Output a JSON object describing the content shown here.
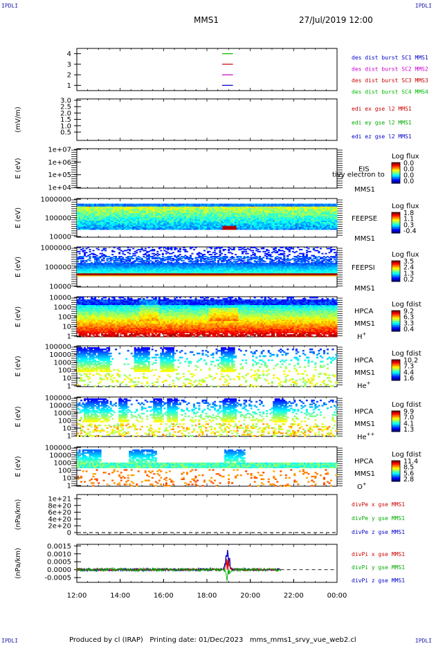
{
  "header": {
    "corner_label": "IPDLI",
    "center_title": "MMS1",
    "datetime": "27/Jul/2019 12:00"
  },
  "footer": {
    "produced_by": "Produced by cl (IRAP)",
    "printing_date": "Printing date: 01/Dec/2023",
    "file_name": "mms_mms1_srvy_vue_web2.cl"
  },
  "colors": {
    "mms1": "#0000cc",
    "mms2": "#cc00cc",
    "mms3": "#cc0000",
    "mms4": "#00bb00",
    "red_label": "#cc0000",
    "green_label": "#00aa00",
    "blue_label": "#0000cc"
  },
  "chart_data": [
    {
      "id": "des-dist-burst",
      "type": "line",
      "ylabel": "",
      "ylim": [
        0.5,
        4.5
      ],
      "yticks": [
        "1",
        "2",
        "3",
        "4"
      ],
      "legend": [
        {
          "text": "des dist burst SC1 MMS1",
          "color": "#0000cc"
        },
        {
          "text": "des dist burst SC2 MMS2",
          "color": "#cc00cc"
        },
        {
          "text": "des dist burst SC3 MMS3",
          "color": "#cc0000"
        },
        {
          "text": "des dist burst SC4 MMS4",
          "color": "#00bb00"
        }
      ],
      "series": [
        {
          "y": 4,
          "x_range": [
            18.7,
            19.2
          ],
          "color": "#00bb00"
        },
        {
          "y": 3,
          "x_range": [
            18.7,
            19.2
          ],
          "color": "#cc0000"
        },
        {
          "y": 2,
          "x_range": [
            18.7,
            19.2
          ],
          "color": "#cc00cc"
        },
        {
          "y": 1,
          "x_range": [
            18.7,
            19.2
          ],
          "color": "#0000cc"
        }
      ]
    },
    {
      "id": "edi-e-gse",
      "type": "line",
      "ylabel": "(mV/m)",
      "yticks": [
        "3.0",
        "2.5",
        "2.0",
        "1.5",
        "1.0",
        "0.5"
      ],
      "legend": [
        {
          "text": "edi ex gse l2 MMS1",
          "color": "#cc0000"
        },
        {
          "text": "edi ey gse l2 MMS1",
          "color": "#00aa00"
        },
        {
          "text": "edi ez gse l2 MMS1",
          "color": "#0000cc"
        }
      ]
    },
    {
      "id": "eis",
      "type": "heatmap",
      "ylabel": "E (eV)",
      "yticks": [
        "1e+07",
        "1e+06",
        "1e+05",
        "1e+04"
      ],
      "instrument": "EIS",
      "overlay": "tivy electron to",
      "sc": "MMS1",
      "cbar_title": "Log flux",
      "cbar_ticks": [
        "0.0",
        "0.0",
        "0.0",
        "0.0"
      ],
      "pattern": "empty"
    },
    {
      "id": "feepse",
      "type": "heatmap",
      "ylabel": "E (eV)",
      "yticks": [
        "1000000",
        "100000",
        "10000"
      ],
      "instrument": "FEEPSE",
      "sc": "MMS1",
      "cbar_title": "Log flux",
      "cbar_ticks": [
        "1.8",
        "1.1",
        "0.3",
        "-0.4"
      ],
      "pattern": "feepse"
    },
    {
      "id": "feepsi",
      "type": "heatmap",
      "ylabel": "E (eV)",
      "yticks": [
        "1000000",
        "100000",
        "10000"
      ],
      "instrument": "FEEPSI",
      "sc": "MMS1",
      "cbar_title": "Log flux",
      "cbar_ticks": [
        "3.5",
        "2.4",
        "1.3",
        "0.2"
      ],
      "pattern": "feepsi"
    },
    {
      "id": "hpca-h",
      "type": "heatmap",
      "ylabel": "E (eV)",
      "yticks": [
        "10000",
        "1000",
        "100",
        "10",
        "1"
      ],
      "instrument": "HPCA",
      "sc": "MMS1",
      "species": "H",
      "species_sup": "+",
      "cbar_title": "Log fdist",
      "cbar_ticks": [
        "9.2",
        "6.3",
        "3.3",
        "0.4"
      ],
      "pattern": "hpca_h"
    },
    {
      "id": "hpca-he",
      "type": "heatmap",
      "ylabel": "E (eV)",
      "yticks": [
        "100000",
        "10000",
        "1000",
        "100",
        "10",
        "1"
      ],
      "instrument": "HPCA",
      "sc": "MMS1",
      "species": "He",
      "species_sup": "+",
      "cbar_title": "Log fdist",
      "cbar_ticks": [
        "10.2",
        "7.3",
        "4.4",
        "1.6"
      ],
      "pattern": "hpca_he"
    },
    {
      "id": "hpca-hepp",
      "type": "heatmap",
      "ylabel": "E (eV)",
      "yticks": [
        "100000",
        "10000",
        "1000",
        "100",
        "10",
        "1"
      ],
      "instrument": "HPCA",
      "sc": "MMS1",
      "species": "He",
      "species_sup": "++",
      "cbar_title": "Log fdist",
      "cbar_ticks": [
        "9.9",
        "7.0",
        "4.1",
        "1.3"
      ],
      "pattern": "hpca_hepp"
    },
    {
      "id": "hpca-o",
      "type": "heatmap",
      "ylabel": "E (eV)",
      "yticks": [
        "100000",
        "10000",
        "1000",
        "100",
        "10",
        "1"
      ],
      "instrument": "HPCA",
      "sc": "MMS1",
      "species": "O",
      "species_sup": "+",
      "cbar_title": "Log fdist",
      "cbar_ticks": [
        "11.4",
        "8.5",
        "5.6",
        "2.8"
      ],
      "pattern": "hpca_o"
    },
    {
      "id": "divpe",
      "type": "line",
      "ylabel": "(nPa/km)",
      "yticks": [
        "1e+21",
        "8e+20",
        "6e+20",
        "4e+20",
        "2e+20",
        "0"
      ],
      "legend": [
        {
          "text": "divPe x gse MMS1",
          "color": "#cc0000"
        },
        {
          "text": "divPe y gse MMS1",
          "color": "#00aa00"
        },
        {
          "text": "divPe z gse MMS1",
          "color": "#0000cc"
        }
      ]
    },
    {
      "id": "divpi",
      "type": "line",
      "ylabel": "(nPa/km)",
      "yticks": [
        "0.0015",
        "0.0010",
        "0.0005",
        "0.0000",
        "-0.0005"
      ],
      "ylim": [
        -0.0008,
        0.0016
      ],
      "data_end_hour": 21.4,
      "legend": [
        {
          "text": "divPi x gse MMS1",
          "color": "#cc0000"
        },
        {
          "text": "divPi y gse MMS1",
          "color": "#00aa00"
        },
        {
          "text": "divPi z gse MMS1",
          "color": "#0000cc"
        }
      ],
      "xticks": [
        "12:00",
        "14:00",
        "16:00",
        "18:00",
        "20:00",
        "22:00",
        "00:00"
      ],
      "xrange_hours": [
        12,
        24
      ]
    }
  ]
}
